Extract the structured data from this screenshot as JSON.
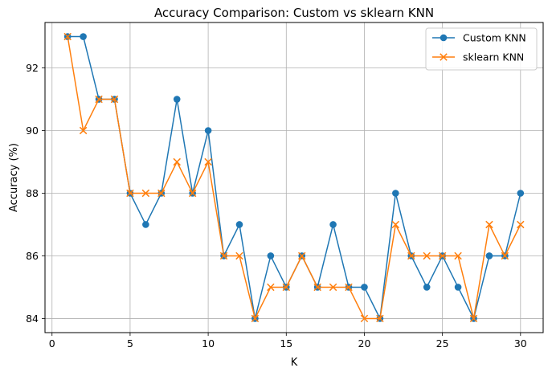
{
  "chart_data": {
    "type": "line",
    "title": "Accuracy Comparison: Custom vs sklearn KNN",
    "xlabel": "K",
    "ylabel": "Accuracy (%)",
    "xlim": [
      -0.45,
      31.45
    ],
    "ylim": [
      83.55,
      93.45
    ],
    "xticks": [
      0,
      5,
      10,
      15,
      20,
      25,
      30
    ],
    "yticks": [
      84,
      86,
      88,
      90,
      92
    ],
    "grid": true,
    "legend_position": "top-right",
    "x": [
      1,
      2,
      3,
      4,
      5,
      6,
      7,
      8,
      9,
      10,
      11,
      12,
      13,
      14,
      15,
      16,
      17,
      18,
      19,
      20,
      21,
      22,
      23,
      24,
      25,
      26,
      27,
      28,
      29,
      30
    ],
    "series": [
      {
        "name": "Custom KNN",
        "color": "#1f77b4",
        "marker": "circle",
        "values": [
          93,
          93,
          91,
          91,
          88,
          87,
          88,
          91,
          88,
          90,
          86,
          87,
          84,
          86,
          85,
          86,
          85,
          87,
          85,
          85,
          84,
          88,
          86,
          85,
          86,
          85,
          84,
          86,
          86,
          88
        ]
      },
      {
        "name": "sklearn KNN",
        "color": "#ff7f0e",
        "marker": "x",
        "values": [
          93,
          90,
          91,
          91,
          88,
          88,
          88,
          89,
          88,
          89,
          86,
          86,
          84,
          85,
          85,
          86,
          85,
          85,
          85,
          84,
          84,
          87,
          86,
          86,
          86,
          86,
          84,
          87,
          86,
          87
        ]
      }
    ]
  }
}
